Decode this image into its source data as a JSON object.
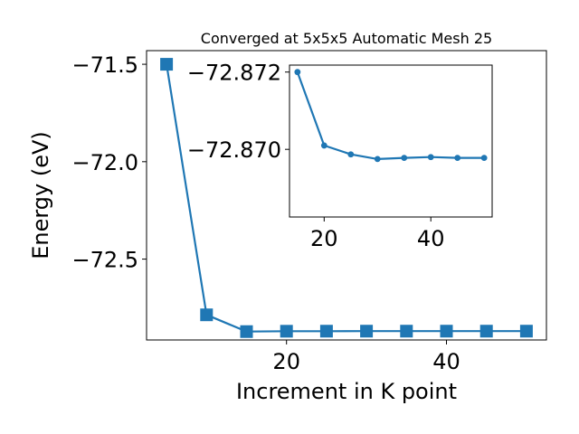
{
  "chart_data": [
    {
      "type": "line",
      "title": "Converged at 5x5x5 Automatic Mesh 25",
      "xlabel": "Increment in K point",
      "ylabel": "Energy (eV)",
      "xlim": [
        2.5,
        52.5
      ],
      "ylim": [
        -72.915,
        -71.43
      ],
      "xticks": [
        20,
        40
      ],
      "yticks": [
        -71.5,
        -72.0,
        -72.5
      ],
      "ytick_labels": [
        "−71.5",
        "−72.0",
        "−72.5"
      ],
      "xtick_labels": [
        "20",
        "40"
      ],
      "grid": false,
      "marker": "square",
      "series": [
        {
          "x": [
            5,
            10,
            15,
            20,
            25,
            30,
            35,
            40,
            45,
            50
          ],
          "y": [
            -71.5,
            -72.786,
            -72.872,
            -72.8701,
            -72.8698,
            -72.8697,
            -72.8697,
            -72.8697,
            -72.8697,
            -72.8697
          ]
        }
      ]
    },
    {
      "type": "line",
      "title": "",
      "xlabel": "",
      "ylabel": "",
      "xlim": [
        13.5,
        51.5
      ],
      "ylim": [
        -72.86825,
        -72.87218
      ],
      "xticks": [
        20,
        40
      ],
      "yticks": [
        -72.872,
        -72.87
      ],
      "ytick_labels": [
        "−72.872",
        "−72.870"
      ],
      "xtick_labels": [
        "20",
        "40"
      ],
      "grid": false,
      "marker": "circle",
      "series": [
        {
          "x": [
            15,
            20,
            25,
            30,
            35,
            40,
            45,
            50
          ],
          "y": [
            -72.872,
            -72.8701,
            -72.86987,
            -72.86975,
            -72.86978,
            -72.8698,
            -72.86978,
            -72.86978
          ]
        }
      ]
    }
  ],
  "colors": {
    "series": "#1f77b4",
    "axes": "#000000",
    "background": "#ffffff"
  }
}
